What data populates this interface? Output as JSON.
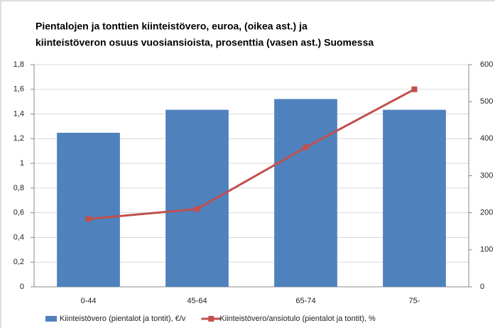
{
  "chart_data": {
    "type": "bar-line",
    "title": [
      "Pientalojen ja tonttien kiinteistövero, euroa, (oikea ast.) ja",
      "kiinteistöveron osuus vuosiansioista, prosenttia (vasen ast.) Suomessa"
    ],
    "categories": [
      "0-44",
      "45-64",
      "65-74",
      "75-"
    ],
    "series": [
      {
        "name": "Kiinteistövero (pientalot ja tontit), €/v",
        "color": "#4f81bd",
        "type": "bar",
        "axis": "y2",
        "values": [
          416,
          478,
          507,
          478
        ]
      },
      {
        "name": "Kiinteistövero/ansiotulo (pientalot ja  tontit), %",
        "color": "#c0504d",
        "type": "line",
        "axis": "y",
        "values": [
          0.55,
          0.63,
          1.13,
          1.6
        ]
      }
    ],
    "ylim": [
      0,
      1.8
    ],
    "yticks": [
      0,
      {
        "value": 0.2,
        "label": "0,2"
      },
      {
        "value": 0.4,
        "label": "0,4"
      },
      {
        "value": 0.6,
        "label": "0,6"
      },
      {
        "value": 0.8,
        "label": "0,8"
      },
      1,
      {
        "value": 1.2,
        "label": "1,2"
      },
      {
        "value": 1.4,
        "label": "1,4"
      },
      {
        "value": 1.6,
        "label": "1,6"
      },
      {
        "value": 1.8,
        "label": "1,8"
      }
    ],
    "y2lim": [
      0,
      600
    ],
    "y2ticks": [
      0,
      100,
      200,
      300,
      400,
      500,
      600
    ],
    "grid": true,
    "legend": "bottom"
  }
}
